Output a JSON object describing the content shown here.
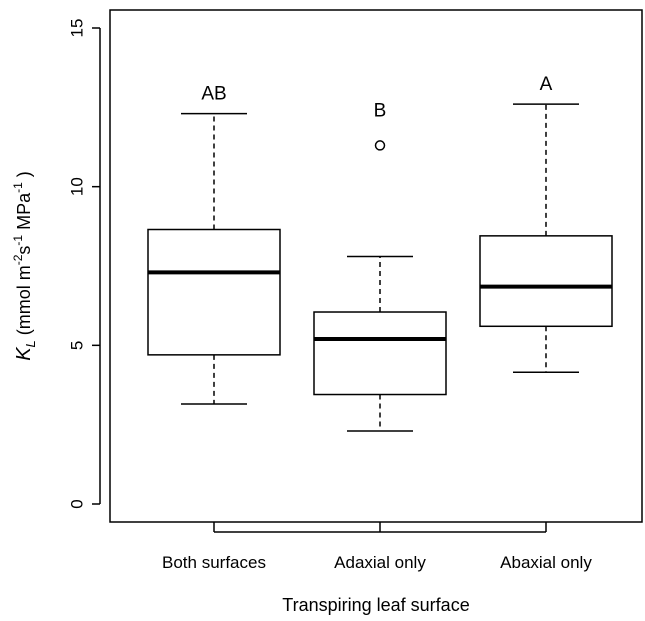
{
  "chart_data": {
    "type": "box",
    "xlabel": "Transpiring leaf surface",
    "ylabel": {
      "symbol": "K",
      "subscript": "L",
      "units_prefix": " (mmol m",
      "exp1": "-2",
      "units_mid": "s",
      "exp2": "-1",
      "units_mid2": "  MPa",
      "exp3": "-1",
      "units_suffix": " )"
    },
    "ylim": [
      0,
      15
    ],
    "yticks": [
      0,
      5,
      10,
      15
    ],
    "ytick_labels": [
      "0",
      "5",
      "10",
      "15"
    ],
    "categories": [
      "Both surfaces",
      "Adaxial only",
      "Abaxial only"
    ],
    "boxes": [
      {
        "category": "Both surfaces",
        "whisker_low": 3.15,
        "q1": 4.7,
        "median": 7.3,
        "q3": 8.65,
        "whisker_high": 12.3,
        "outliers": [],
        "significance": "AB"
      },
      {
        "category": "Adaxial only",
        "whisker_low": 2.3,
        "q1": 3.45,
        "median": 5.2,
        "q3": 6.05,
        "whisker_high": 7.8,
        "outliers": [
          11.3
        ],
        "significance": "B"
      },
      {
        "category": "Abaxial only",
        "whisker_low": 4.15,
        "q1": 5.6,
        "median": 6.85,
        "q3": 8.45,
        "whisker_high": 12.6,
        "outliers": [],
        "significance": "A"
      }
    ],
    "grid": false,
    "legend": "none"
  }
}
